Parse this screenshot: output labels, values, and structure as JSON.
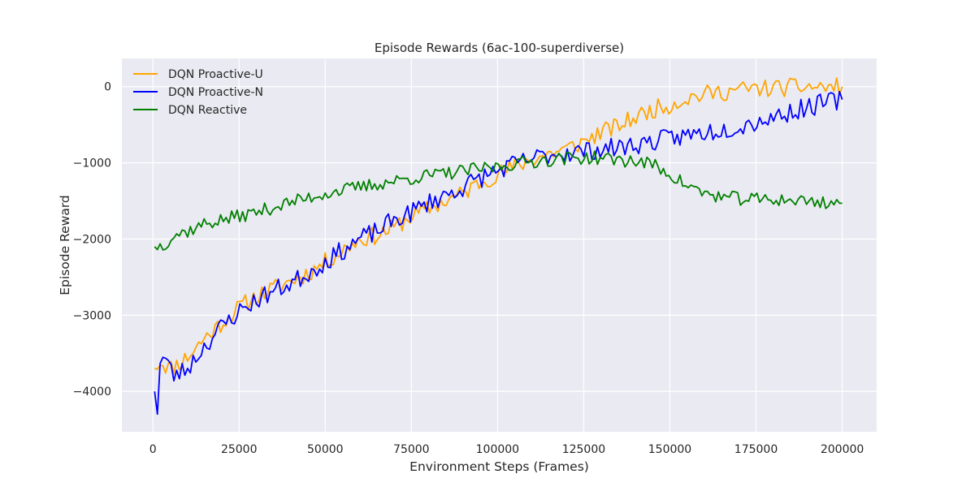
{
  "chart_data": {
    "type": "line",
    "title": "Episode Rewards (6ac-100-superdiverse)",
    "xlabel": "Environment Steps (Frames)",
    "ylabel": "Episode Reward",
    "xlim": [
      -9000,
      210000
    ],
    "ylim": [
      -4530,
      370
    ],
    "xticks": [
      0,
      25000,
      50000,
      75000,
      100000,
      125000,
      150000,
      175000,
      200000
    ],
    "xtick_labels": [
      "0",
      "25000",
      "50000",
      "75000",
      "100000",
      "125000",
      "150000",
      "175000",
      "200000"
    ],
    "yticks": [
      -4000,
      -3000,
      -2000,
      -1000,
      0
    ],
    "ytick_labels": [
      "−4000",
      "−3000",
      "−2000",
      "−1000",
      "0"
    ],
    "grid": true,
    "legend_position": "top-left",
    "series": [
      {
        "name": "DQN Proactive-U",
        "color": "#FFA500",
        "anchors": [
          [
            500,
            -3700
          ],
          [
            2000,
            -3600
          ],
          [
            5000,
            -3700
          ],
          [
            10000,
            -3550
          ],
          [
            15000,
            -3300
          ],
          [
            20000,
            -3100
          ],
          [
            25000,
            -2900
          ],
          [
            30000,
            -2750
          ],
          [
            35000,
            -2650
          ],
          [
            40000,
            -2550
          ],
          [
            45000,
            -2450
          ],
          [
            50000,
            -2300
          ],
          [
            55000,
            -2150
          ],
          [
            60000,
            -2000
          ],
          [
            65000,
            -1950
          ],
          [
            70000,
            -1850
          ],
          [
            75000,
            -1700
          ],
          [
            80000,
            -1600
          ],
          [
            85000,
            -1500
          ],
          [
            90000,
            -1400
          ],
          [
            95000,
            -1250
          ],
          [
            100000,
            -1150
          ],
          [
            105000,
            -1050
          ],
          [
            110000,
            -950
          ],
          [
            115000,
            -880
          ],
          [
            120000,
            -820
          ],
          [
            125000,
            -720
          ],
          [
            130000,
            -600
          ],
          [
            135000,
            -520
          ],
          [
            140000,
            -400
          ],
          [
            145000,
            -300
          ],
          [
            150000,
            -240
          ],
          [
            155000,
            -150
          ],
          [
            160000,
            -100
          ],
          [
            165000,
            -70
          ],
          [
            170000,
            -40
          ],
          [
            175000,
            -30
          ],
          [
            180000,
            -20
          ],
          [
            185000,
            -10
          ],
          [
            190000,
            0
          ],
          [
            195000,
            -10
          ],
          [
            200000,
            0
          ]
        ],
        "noise": 120,
        "seed": 11
      },
      {
        "name": "DQN Proactive-N",
        "color": "#0000FF",
        "anchors": [
          [
            500,
            -4000
          ],
          [
            1200,
            -4320
          ],
          [
            2000,
            -3600
          ],
          [
            3500,
            -3550
          ],
          [
            6000,
            -3800
          ],
          [
            10000,
            -3700
          ],
          [
            15000,
            -3400
          ],
          [
            20000,
            -3150
          ],
          [
            25000,
            -2950
          ],
          [
            30000,
            -2800
          ],
          [
            35000,
            -2680
          ],
          [
            40000,
            -2580
          ],
          [
            45000,
            -2450
          ],
          [
            50000,
            -2300
          ],
          [
            55000,
            -2150
          ],
          [
            60000,
            -2000
          ],
          [
            65000,
            -1900
          ],
          [
            70000,
            -1750
          ],
          [
            75000,
            -1650
          ],
          [
            80000,
            -1520
          ],
          [
            85000,
            -1420
          ],
          [
            90000,
            -1320
          ],
          [
            95000,
            -1200
          ],
          [
            100000,
            -1100
          ],
          [
            105000,
            -1020
          ],
          [
            110000,
            -950
          ],
          [
            115000,
            -890
          ],
          [
            120000,
            -860
          ],
          [
            125000,
            -850
          ],
          [
            130000,
            -820
          ],
          [
            135000,
            -800
          ],
          [
            140000,
            -760
          ],
          [
            145000,
            -720
          ],
          [
            150000,
            -680
          ],
          [
            155000,
            -640
          ],
          [
            160000,
            -600
          ],
          [
            165000,
            -560
          ],
          [
            170000,
            -520
          ],
          [
            175000,
            -460
          ],
          [
            180000,
            -400
          ],
          [
            185000,
            -330
          ],
          [
            190000,
            -270
          ],
          [
            195000,
            -210
          ],
          [
            200000,
            -170
          ]
        ],
        "noise": 130,
        "seed": 23
      },
      {
        "name": "DQN Reactive",
        "color": "#008000",
        "anchors": [
          [
            500,
            -2100
          ],
          [
            3000,
            -2080
          ],
          [
            6000,
            -1950
          ],
          [
            10000,
            -1900
          ],
          [
            15000,
            -1800
          ],
          [
            20000,
            -1750
          ],
          [
            25000,
            -1700
          ],
          [
            30000,
            -1650
          ],
          [
            35000,
            -1580
          ],
          [
            40000,
            -1520
          ],
          [
            45000,
            -1460
          ],
          [
            50000,
            -1400
          ],
          [
            55000,
            -1360
          ],
          [
            60000,
            -1320
          ],
          [
            65000,
            -1280
          ],
          [
            70000,
            -1240
          ],
          [
            75000,
            -1200
          ],
          [
            80000,
            -1170
          ],
          [
            85000,
            -1140
          ],
          [
            90000,
            -1110
          ],
          [
            95000,
            -1080
          ],
          [
            100000,
            -1050
          ],
          [
            105000,
            -1010
          ],
          [
            110000,
            -980
          ],
          [
            115000,
            -960
          ],
          [
            120000,
            -940
          ],
          [
            125000,
            -930
          ],
          [
            130000,
            -940
          ],
          [
            135000,
            -960
          ],
          [
            140000,
            -980
          ],
          [
            145000,
            -1020
          ],
          [
            150000,
            -1150
          ],
          [
            155000,
            -1300
          ],
          [
            160000,
            -1400
          ],
          [
            165000,
            -1450
          ],
          [
            170000,
            -1470
          ],
          [
            175000,
            -1480
          ],
          [
            180000,
            -1480
          ],
          [
            185000,
            -1490
          ],
          [
            190000,
            -1500
          ],
          [
            195000,
            -1520
          ],
          [
            200000,
            -1530
          ]
        ],
        "noise": 90,
        "seed": 37
      }
    ]
  }
}
